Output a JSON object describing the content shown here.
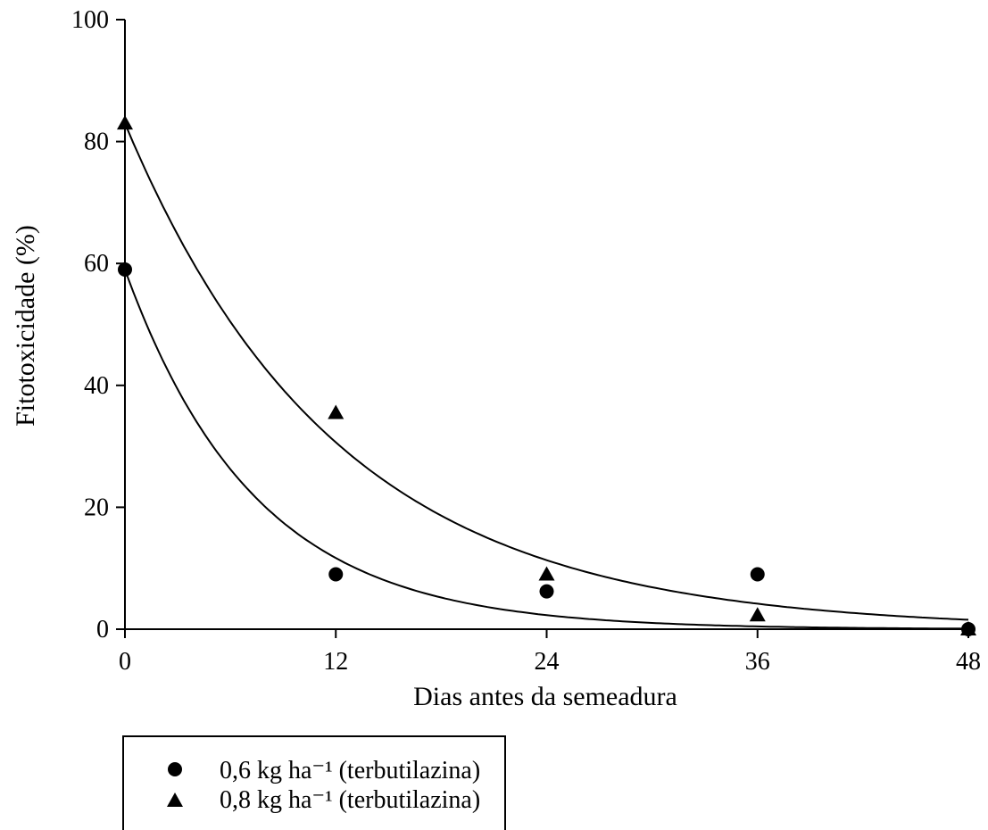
{
  "chart_data": {
    "type": "scatter",
    "title": "",
    "xlabel": "Dias antes da semeadura",
    "ylabel": "Fitotoxicidade (%)",
    "xlim": [
      0,
      48
    ],
    "ylim": [
      0,
      100
    ],
    "xticks": [
      "0",
      "12",
      "24",
      "36",
      "48"
    ],
    "yticks": [
      "0",
      "20",
      "40",
      "60",
      "80",
      "100"
    ],
    "grid": false,
    "legend_position": "bottom-left",
    "series": [
      {
        "name": "0,6 kg ha⁻¹ (terbutilazina)",
        "marker": "circle",
        "x": [
          0,
          12,
          24,
          36,
          48
        ],
        "y": [
          59,
          9,
          6.2,
          9,
          0
        ],
        "fit": {
          "a": 59,
          "k": 0.135
        }
      },
      {
        "name": "0,8 kg ha⁻¹ (terbutilazina)",
        "marker": "triangle",
        "x": [
          0,
          12,
          24,
          36,
          48
        ],
        "y": [
          83,
          35.5,
          9,
          2.3,
          0
        ],
        "fit": {
          "a": 83,
          "k": 0.083
        }
      }
    ]
  }
}
